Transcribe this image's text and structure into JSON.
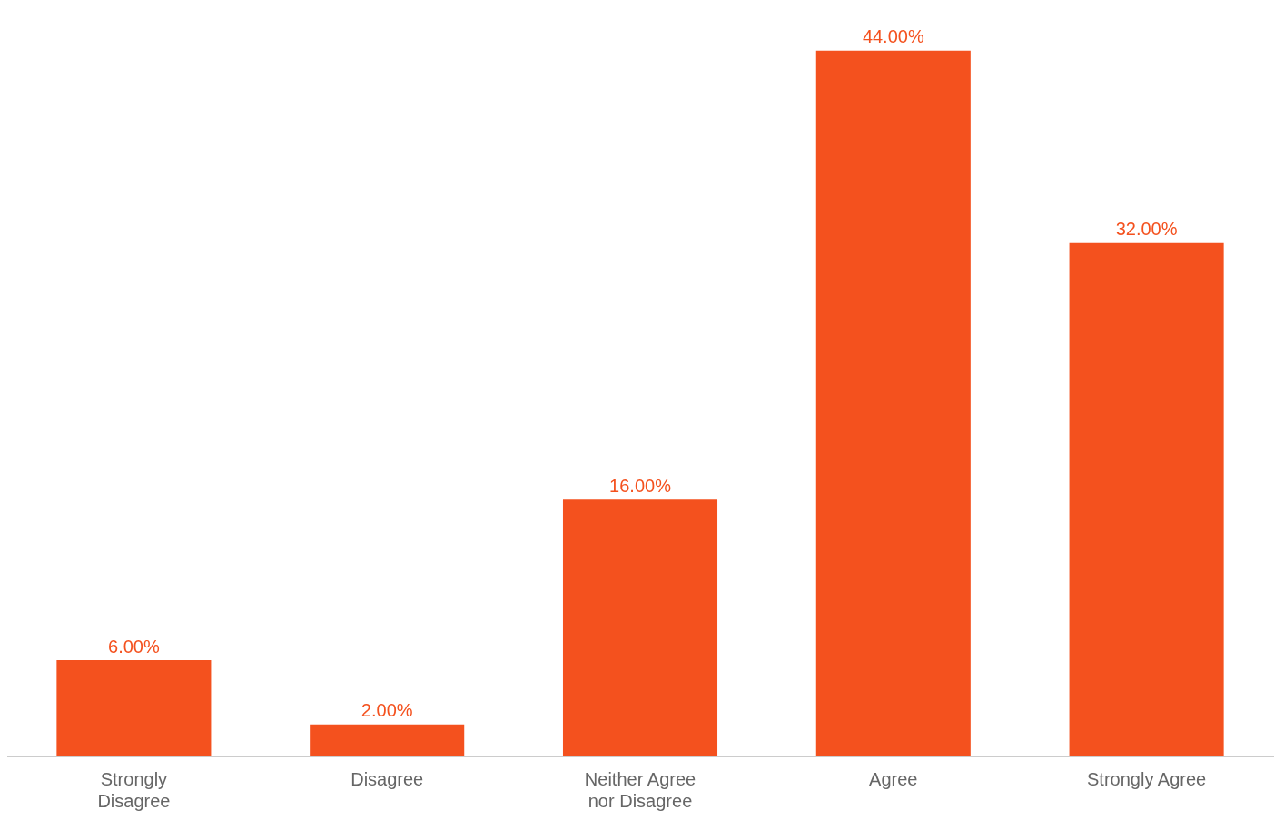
{
  "chart_data": {
    "type": "bar",
    "categories": [
      "Strongly Disagree",
      "Disagree",
      "Neither Agree nor Disagree",
      "Agree",
      "Strongly Agree"
    ],
    "values": [
      6,
      2,
      16,
      44,
      32
    ],
    "value_labels": [
      "6.00%",
      "2.00%",
      "16.00%",
      "44.00%",
      "32.00%"
    ],
    "color": "#f4511e",
    "grid": false,
    "legend": false
  }
}
